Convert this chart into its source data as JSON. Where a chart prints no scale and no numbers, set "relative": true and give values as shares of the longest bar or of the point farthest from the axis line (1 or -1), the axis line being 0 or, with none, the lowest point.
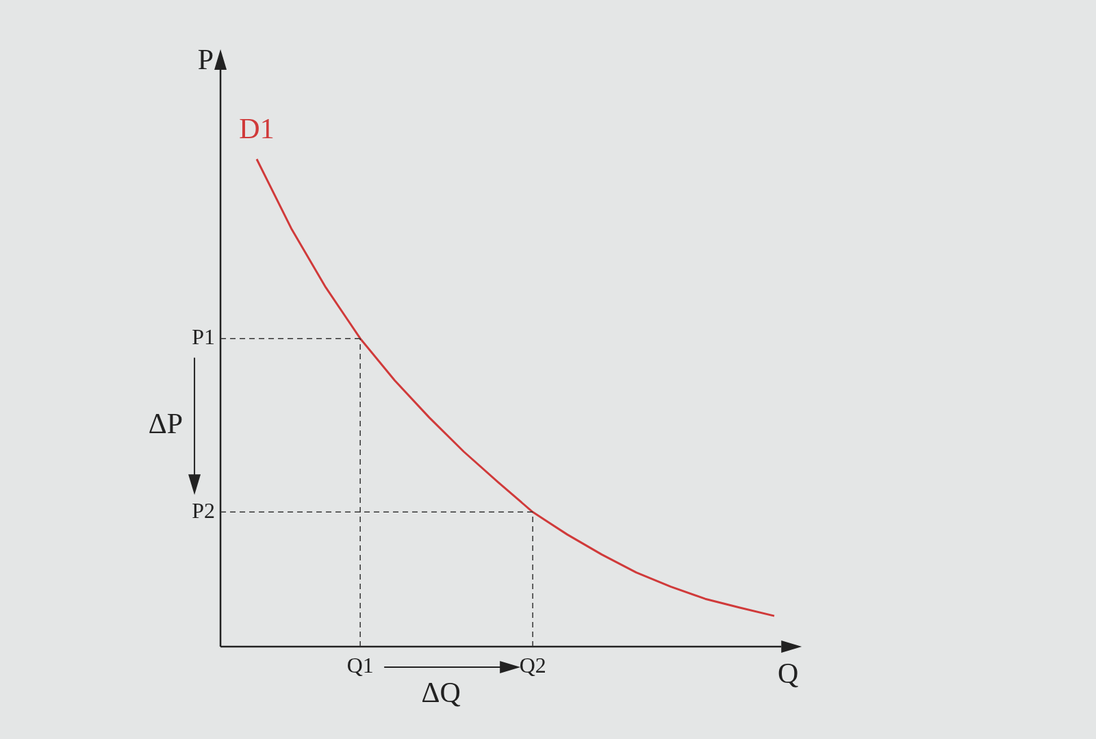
{
  "chart_data": {
    "type": "line",
    "relative": true,
    "xlabel": "Q",
    "ylabel": "P",
    "marker": "none",
    "categories": [
      null,
      null,
      null,
      "Q1",
      null,
      null,
      null,
      null,
      "Q2",
      null,
      null,
      null,
      null,
      null,
      null,
      null
    ],
    "series": [
      {
        "name": "D1",
        "color": "#d03a3a",
        "values": [
          1.0,
          0.858,
          0.737,
          0.632,
          0.546,
          0.47,
          0.4,
          0.337,
          0.276,
          0.23,
          0.189,
          0.152,
          0.123,
          0.098,
          0.08,
          0.063
        ]
      }
    ],
    "ref_lines": [
      {
        "axis": "y",
        "value": 0.632,
        "label": "P1",
        "line_style": "dashed",
        "color": "#333333"
      },
      {
        "axis": "y",
        "value": 0.276,
        "label": "P2",
        "line_style": "dashed",
        "color": "#333333"
      },
      {
        "axis": "x",
        "value": "Q1",
        "line_style": "dashed",
        "color": "#333333"
      },
      {
        "axis": "x",
        "value": "Q2",
        "line_style": "dashed",
        "color": "#333333"
      }
    ],
    "annotations": [
      "ΔP",
      "ΔQ"
    ]
  }
}
